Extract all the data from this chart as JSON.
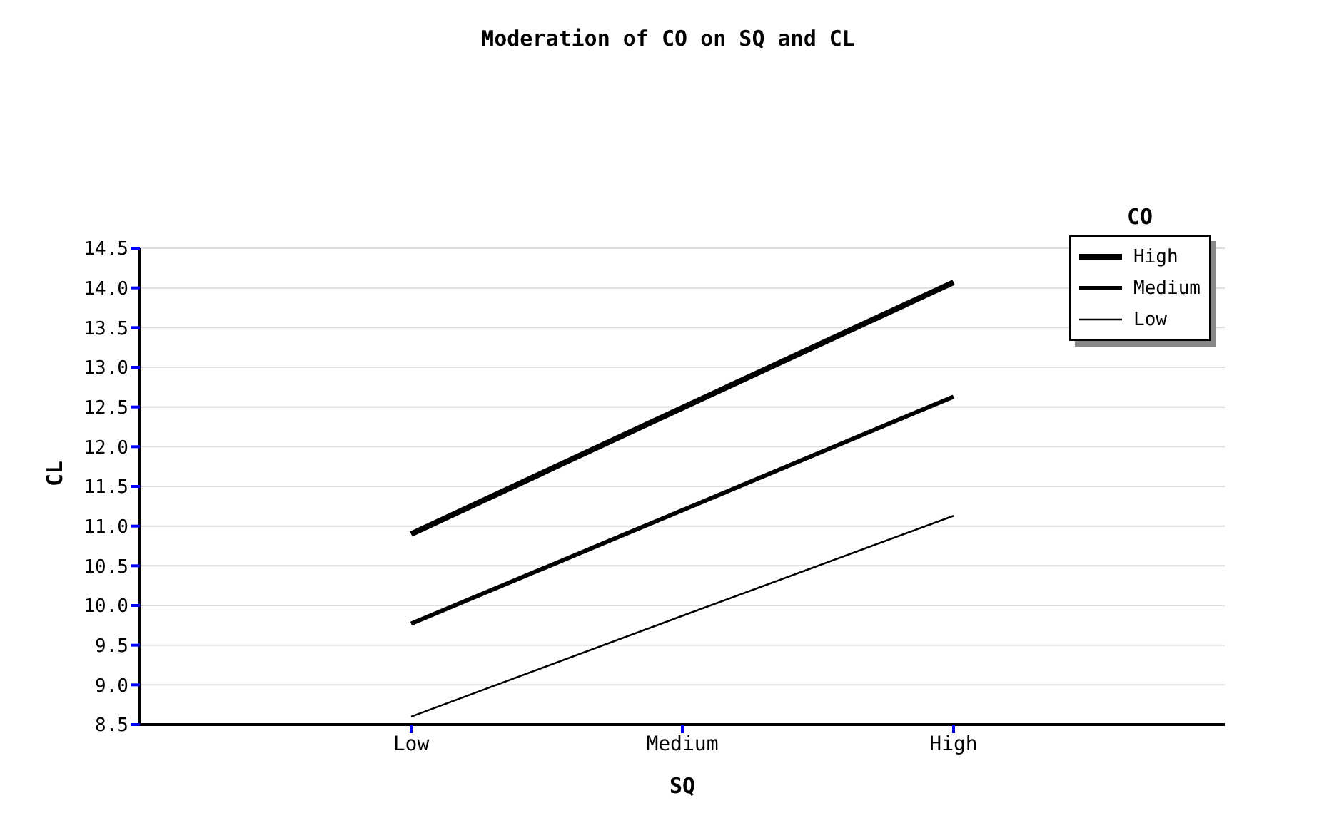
{
  "chart_data": {
    "type": "line",
    "title": "Moderation of CO on SQ and CL",
    "xlabel": "SQ",
    "ylabel": "CL",
    "legend_title": "CO",
    "categories": [
      "Low",
      "Medium",
      "High"
    ],
    "series": [
      {
        "name": "High",
        "color": "#000000",
        "values": [
          10.9,
          12.49,
          14.07
        ]
      },
      {
        "name": "Medium",
        "color": "#000000",
        "values": [
          9.77,
          11.2,
          12.63
        ]
      },
      {
        "name": "Low",
        "color": "#000000",
        "values": [
          8.6,
          9.87,
          11.13
        ]
      }
    ],
    "ylim": [
      8.5,
      14.5
    ],
    "yticks": [
      8.5,
      {
        "value": 9,
        "label": "9.0"
      },
      9.5,
      {
        "value": 10,
        "label": "10.0"
      },
      10.5,
      {
        "value": 11,
        "label": "11.0"
      },
      11.5,
      {
        "value": 12,
        "label": "12.0"
      },
      12.5,
      {
        "value": 13,
        "label": "13.0"
      },
      13.5,
      {
        "value": 14,
        "label": "14.0"
      },
      14.5
    ],
    "grid": "y",
    "legend": "top right",
    "marker": "none",
    "line_style": "solid"
  }
}
